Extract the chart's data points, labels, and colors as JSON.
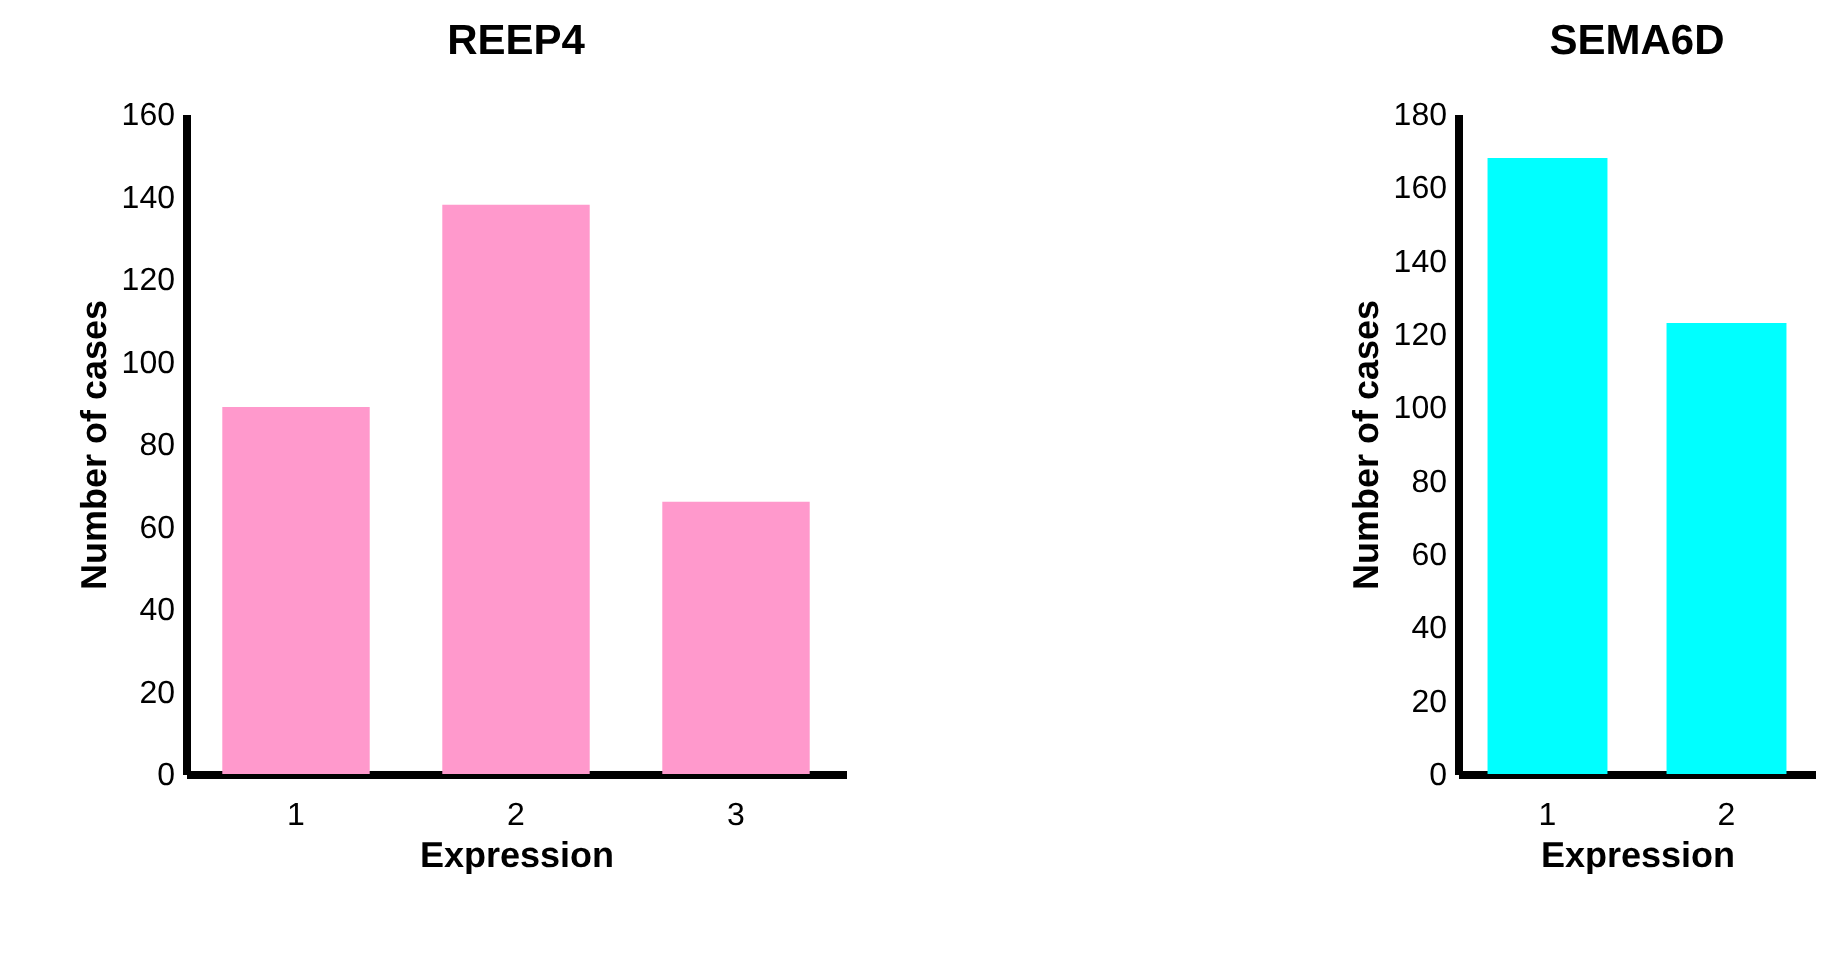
{
  "chart_data": [
    {
      "type": "bar",
      "title": "REEP4",
      "xlabel": "Expression",
      "ylabel": "Number of cases",
      "categories": [
        "1",
        "2",
        "3"
      ],
      "values": [
        89,
        138,
        66
      ],
      "color": "#ff99cc",
      "ylim": [
        0,
        160
      ],
      "yticks": [
        0,
        20,
        40,
        60,
        80,
        100,
        120,
        140,
        160
      ],
      "grid": false
    },
    {
      "type": "bar",
      "title": "SEMA6D",
      "xlabel": "Expression",
      "ylabel": "Number of cases",
      "categories": [
        "1",
        "2"
      ],
      "values": [
        168,
        123
      ],
      "color": "#00ffff",
      "ylim": [
        0,
        180
      ],
      "yticks": [
        0,
        20,
        40,
        60,
        80,
        100,
        120,
        140,
        160,
        180
      ],
      "grid": false
    }
  ]
}
